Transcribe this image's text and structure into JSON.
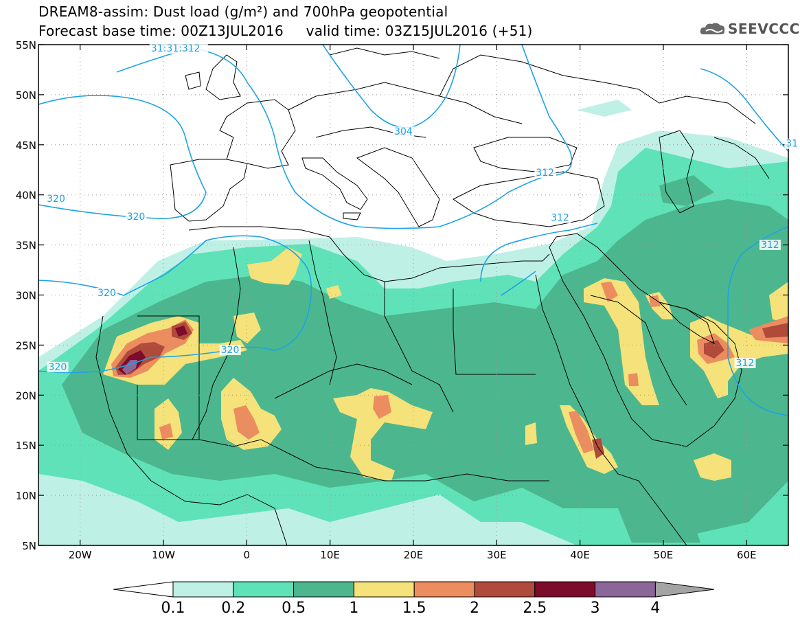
{
  "title_line1": "DREAM8-assim: Dust load (g/m²) and 700hPa geopotential",
  "title_line2": "Forecast base time: 00Z13JUL2016     valid time: 03Z15JUL2016 (+51)",
  "logo": {
    "text": "SEEVCCC",
    "icon": "cloud-logo-icon"
  },
  "map": {
    "lon_range": [
      -25,
      65
    ],
    "lat_range": [
      5,
      55
    ],
    "lat_labels": [
      "5N",
      "10N",
      "15N",
      "20N",
      "25N",
      "30N",
      "35N",
      "40N",
      "45N",
      "50N",
      "55N"
    ],
    "lon_labels": [
      "20W",
      "10W",
      "0",
      "10E",
      "20E",
      "30E",
      "40E",
      "50E",
      "60E"
    ],
    "lon_ticks": [
      -20,
      -10,
      0,
      10,
      20,
      30,
      40,
      50,
      60
    ],
    "lat_ticks": [
      5,
      10,
      15,
      20,
      25,
      30,
      35,
      40,
      45,
      50,
      55
    ]
  },
  "contours": {
    "units": "dam",
    "labels": [
      {
        "text": "31:31:312",
        "lon": -11.5,
        "lat": 54.3
      },
      {
        "text": "304",
        "lon": 17.7,
        "lat": 46.0
      },
      {
        "text": "312",
        "lon": 34.7,
        "lat": 41.9
      },
      {
        "text": "312",
        "lon": 36.5,
        "lat": 37.4
      },
      {
        "text": "312",
        "lon": 61.7,
        "lat": 34.7
      },
      {
        "text": "31",
        "lon": 64.7,
        "lat": 44.8
      },
      {
        "text": "320",
        "lon": -24.0,
        "lat": 39.3
      },
      {
        "text": "320",
        "lon": -14.4,
        "lat": 37.5
      },
      {
        "text": "320",
        "lon": -17.9,
        "lat": 29.9
      },
      {
        "text": "320",
        "lon": -23.8,
        "lat": 22.5
      },
      {
        "text": "320",
        "lon": -3.1,
        "lat": 24.2
      },
      {
        "text": "312",
        "lon": 58.7,
        "lat": 22.9
      }
    ]
  },
  "colorbar": {
    "tick_labels": [
      "0.1",
      "0.2",
      "0.5",
      "1",
      "1.5",
      "2",
      "2.5",
      "3",
      "4"
    ],
    "colors": [
      "#bff0e6",
      "#5fe2b8",
      "#4cb78e",
      "#f5e27a",
      "#eb8d5f",
      "#b04a3b",
      "#7d0b2b",
      "#8a6699"
    ],
    "under_color": "#ffffff",
    "over_color": "#a4a4a4"
  },
  "colors": {
    "land_outline": "#000000",
    "contour_line": "#1ea2e6",
    "dust_low": "#bff0e6",
    "dust_mid": "#5fe2b8"
  }
}
